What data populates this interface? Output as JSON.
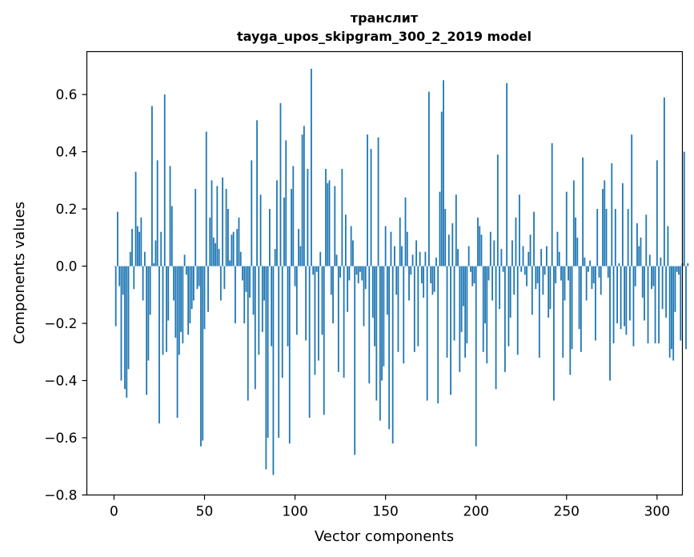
{
  "chart_data": {
    "type": "bar",
    "title_line1": "транслит",
    "title_line2": "tayga_upos_skipgram_300_2_2019 model",
    "xlabel": "Vector components",
    "ylabel": "Components values",
    "xlim": [
      -15,
      314
    ],
    "ylim": [
      -0.8,
      0.75
    ],
    "xticks": [
      0,
      50,
      100,
      150,
      200,
      250,
      300
    ],
    "xtick_labels": [
      "0",
      "50",
      "100",
      "150",
      "200",
      "250",
      "300"
    ],
    "yticks": [
      -0.8,
      -0.6,
      -0.4,
      -0.2,
      0.0,
      0.2,
      0.4,
      0.6
    ],
    "ytick_labels": [
      "−0.8",
      "−0.6",
      "−0.4",
      "−0.2",
      "0.0",
      "0.2",
      "0.4",
      "0.6"
    ],
    "bar_color": "#1f77b4",
    "grid": false,
    "values": [
      0.0,
      -0.21,
      0.19,
      -0.07,
      -0.4,
      -0.1,
      -0.43,
      -0.46,
      -0.36,
      0.05,
      0.13,
      -0.08,
      0.33,
      0.14,
      0.12,
      0.17,
      -0.12,
      0.05,
      -0.45,
      -0.33,
      -0.17,
      0.56,
      0.01,
      0.09,
      0.37,
      -0.55,
      0.12,
      -0.31,
      0.6,
      -0.3,
      -0.19,
      0.35,
      0.21,
      -0.12,
      -0.25,
      -0.53,
      -0.31,
      -0.23,
      -0.27,
      0.04,
      -0.03,
      -0.24,
      -0.2,
      -0.15,
      -0.12,
      0.27,
      -0.08,
      -0.07,
      -0.63,
      -0.61,
      -0.22,
      0.47,
      -0.16,
      0.17,
      0.3,
      0.1,
      0.08,
      0.28,
      0.06,
      -0.12,
      0.31,
      -0.08,
      0.27,
      0.2,
      0.02,
      0.11,
      0.12,
      -0.2,
      0.13,
      0.17,
      0.05,
      -0.05,
      -0.2,
      -0.09,
      -0.47,
      -0.11,
      0.37,
      -0.17,
      -0.43,
      0.51,
      -0.31,
      0.25,
      -0.23,
      -0.12,
      -0.71,
      -0.6,
      0.2,
      -0.28,
      -0.73,
      0.06,
      0.3,
      -0.6,
      0.57,
      -0.39,
      0.24,
      0.44,
      -0.28,
      -0.62,
      0.27,
      0.35,
      -0.07,
      -0.24,
      0.13,
      0.07,
      0.46,
      0.49,
      -0.26,
      0.34,
      -0.53,
      0.69,
      -0.03,
      -0.38,
      -0.02,
      -0.33,
      0.05,
      -0.24,
      -0.52,
      0.34,
      0.29,
      0.3,
      -0.1,
      -0.2,
      0.28,
      0.04,
      -0.37,
      -0.04,
      0.34,
      -0.39,
      0.18,
      -0.16,
      -0.05,
      0.14,
      0.09,
      -0.66,
      -0.03,
      -0.06,
      -0.02,
      -0.05,
      -0.21,
      -0.08,
      0.46,
      -0.41,
      0.41,
      -0.18,
      -0.28,
      -0.47,
      0.45,
      -0.54,
      -0.4,
      -0.35,
      0.14,
      -0.17,
      -0.57,
      0.12,
      -0.62,
      0.07,
      -0.1,
      -0.3,
      0.17,
      0.07,
      -0.34,
      0.24,
      0.12,
      -0.12,
      -0.03,
      0.04,
      -0.3,
      0.09,
      -0.28,
      0.05,
      -0.06,
      -0.11,
      0.05,
      -0.47,
      0.61,
      -0.06,
      -0.1,
      -0.09,
      0.03,
      -0.48,
      0.26,
      0.54,
      0.65,
      0.2,
      -0.32,
      0.11,
      -0.45,
      0.15,
      -0.26,
      0.25,
      0.06,
      -0.37,
      -0.23,
      -0.14,
      -0.32,
      -0.27,
      0.07,
      -0.02,
      -0.07,
      -0.06,
      -0.63,
      0.17,
      0.14,
      0.11,
      -0.3,
      -0.2,
      -0.34,
      -0.05,
      0.12,
      -0.12,
      0.09,
      -0.43,
      0.39,
      -0.15,
      0.06,
      -0.02,
      -0.37,
      0.64,
      -0.28,
      -0.18,
      0.09,
      -0.1,
      0.17,
      -0.31,
      0.25,
      -0.02,
      0.07,
      -0.03,
      -0.07,
      0.05,
      0.11,
      -0.17,
      0.19,
      -0.08,
      -0.06,
      -0.32,
      0.06,
      -0.1,
      -0.03,
      0.07,
      -0.18,
      -0.15,
      0.43,
      -0.47,
      -0.06,
      0.12,
      0.05,
      -0.05,
      -0.32,
      -0.12,
      0.26,
      -0.05,
      -0.38,
      -0.29,
      0.3,
      0.17,
      0.1,
      -0.22,
      -0.3,
      0.38,
      0.03,
      -0.12,
      -0.02,
      0.02,
      -0.08,
      -0.06,
      -0.26,
      0.2,
      -0.04,
      -0.1,
      0.27,
      0.3,
      0.2,
      -0.04,
      -0.4,
      0.36,
      -0.27,
      0.2,
      -0.2,
      0.01,
      -0.22,
      0.29,
      -0.21,
      -0.24,
      0.2,
      -0.19,
      0.46,
      -0.28,
      -0.07,
      0.15,
      0.07,
      0.1,
      -0.11,
      -0.19,
      0.18,
      -0.27,
      0.04,
      -0.08,
      -0.07,
      -0.27,
      0.37,
      -0.27,
      0.03,
      -0.15,
      0.59,
      -0.18,
      0.14,
      -0.32,
      -0.29,
      -0.33,
      -0.16,
      -0.02,
      -0.03,
      -0.26,
      0.01,
      0.4,
      -0.29,
      0.01
    ]
  }
}
